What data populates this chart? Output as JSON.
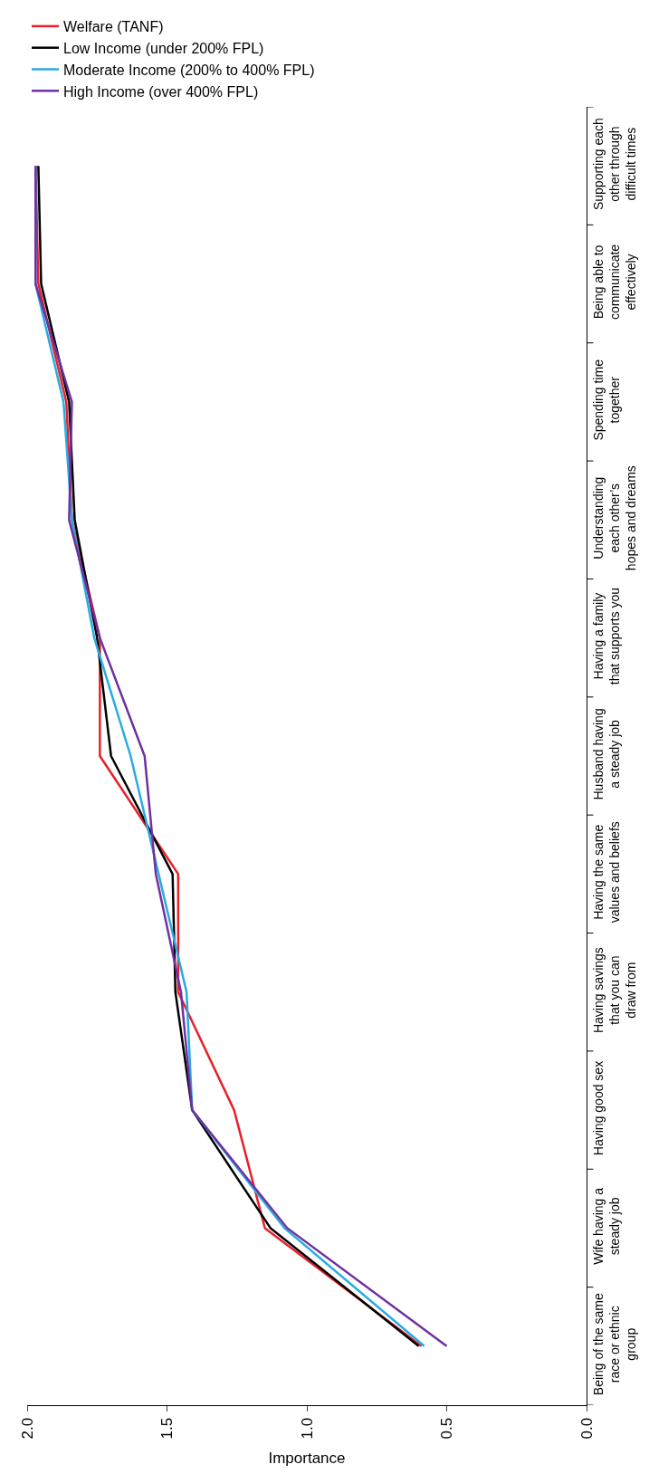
{
  "chart_data": {
    "type": "line",
    "orientation": "horizontal",
    "xlabel": "Importance",
    "categories": [
      "Supporting each\nother through\ndifficult times",
      "Being able to\ncommunicate\neffectively",
      "Spending time\ntogether",
      "Understanding\neach other’s\nhopes and dreams",
      "Having a family\nthat supports you",
      "Husband having\na steady job",
      "Having the same\nvalues and beliefs",
      "Having savings\nthat you can\ndraw from",
      "Having good sex",
      "Wife having a\nsteady job",
      "Being of the same\nrace or ethnic\ngroup"
    ],
    "series": [
      {
        "name": "Welfare (TANF)",
        "color": "#e8202a",
        "values": [
          1.97,
          1.96,
          1.86,
          1.84,
          1.74,
          1.74,
          1.46,
          1.46,
          1.26,
          1.15,
          0.59
        ]
      },
      {
        "name": "Low Income (under 200% FPL)",
        "color": "#000000",
        "values": [
          1.96,
          1.95,
          1.85,
          1.83,
          1.75,
          1.7,
          1.48,
          1.47,
          1.41,
          1.13,
          0.6
        ]
      },
      {
        "name": "Moderate Income (200% to 400% FPL)",
        "color": "#29abe2",
        "values": [
          1.97,
          1.97,
          1.87,
          1.84,
          1.76,
          1.63,
          1.53,
          1.43,
          1.41,
          1.08,
          0.58
        ]
      },
      {
        "name": "High Income (over 400% FPL)",
        "color": "#7030a0",
        "values": [
          1.97,
          1.97,
          1.84,
          1.85,
          1.74,
          1.58,
          1.54,
          1.45,
          1.41,
          1.07,
          0.5
        ]
      }
    ],
    "xlim": [
      2.0,
      0.0
    ],
    "xticks": [
      {
        "value": 2.0,
        "label": "2.0"
      },
      {
        "value": 1.5,
        "label": "1.5"
      },
      {
        "value": 1.0,
        "label": "1.0"
      },
      {
        "value": 0.5,
        "label": "0.5"
      },
      {
        "value": 0.0,
        "label": "0.0"
      }
    ],
    "legend": "top",
    "marker": "none",
    "line_style": "solid"
  }
}
